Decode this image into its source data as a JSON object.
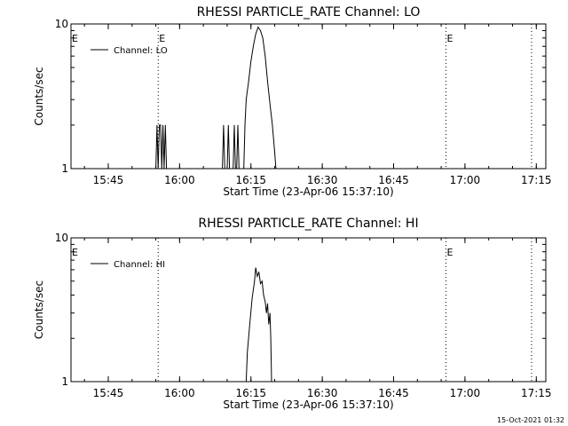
{
  "timestamp": "15-Oct-2021 01:32",
  "chart_data": [
    {
      "type": "line",
      "title": "RHESSI PARTICLE_RATE Channel: LO",
      "xlabel": "Start Time (23-Apr-06 15:37:10)",
      "ylabel": "Counts/sec",
      "y_scale": "log",
      "ylim": [
        1,
        10
      ],
      "xlim": [
        "15:37:10",
        "17:17:00"
      ],
      "xticks": [
        "15:45",
        "16:00",
        "16:15",
        "16:30",
        "16:45",
        "17:00",
        "17:15"
      ],
      "yticks": [
        "1",
        "10"
      ],
      "event_markers": [
        {
          "x": "15:55:30",
          "label": "E"
        },
        {
          "x": "16:56:00",
          "label": "E"
        },
        {
          "x": "17:14:00",
          "label": ""
        }
      ],
      "edge_label": "E",
      "legend": {
        "position": "top-left",
        "entries": [
          "Channel: LO"
        ]
      },
      "series": [
        {
          "name": "Channel: LO",
          "points": [
            [
              "15:55:00",
              1
            ],
            [
              "15:55:15",
              2
            ],
            [
              "15:55:30",
              1
            ],
            [
              "15:55:45",
              2
            ],
            [
              "15:56:00",
              2
            ],
            [
              "15:56:15",
              1
            ],
            [
              "15:56:30",
              2
            ],
            [
              "15:56:45",
              1
            ],
            [
              "15:57:00",
              2
            ],
            [
              "15:57:15",
              1
            ],
            [
              "16:09:00",
              1
            ],
            [
              "16:09:15",
              2
            ],
            [
              "16:09:30",
              1
            ],
            [
              "16:10:00",
              1
            ],
            [
              "16:10:15",
              2
            ],
            [
              "16:10:30",
              1
            ],
            [
              "16:11:15",
              1
            ],
            [
              "16:11:30",
              2
            ],
            [
              "16:11:45",
              1
            ],
            [
              "16:12:00",
              1
            ],
            [
              "16:12:15",
              2
            ],
            [
              "16:12:30",
              1
            ],
            [
              "16:13:30",
              1
            ],
            [
              "16:13:45",
              2
            ],
            [
              "16:14:00",
              3
            ],
            [
              "16:14:30",
              4
            ],
            [
              "16:15:00",
              5.5
            ],
            [
              "16:15:30",
              7
            ],
            [
              "16:16:00",
              8.5
            ],
            [
              "16:16:30",
              9.5
            ],
            [
              "16:17:00",
              9
            ],
            [
              "16:17:30",
              8
            ],
            [
              "16:18:00",
              6
            ],
            [
              "16:18:30",
              4
            ],
            [
              "16:19:00",
              2.8
            ],
            [
              "16:19:30",
              2
            ],
            [
              "16:20:00",
              1.3
            ],
            [
              "16:20:15",
              1
            ]
          ]
        }
      ]
    },
    {
      "type": "line",
      "title": "RHESSI PARTICLE_RATE Channel: HI",
      "xlabel": "Start Time (23-Apr-06 15:37:10)",
      "ylabel": "Counts/sec",
      "y_scale": "log",
      "ylim": [
        1,
        10
      ],
      "xlim": [
        "15:37:10",
        "17:17:00"
      ],
      "xticks": [
        "15:45",
        "16:00",
        "16:15",
        "16:30",
        "16:45",
        "17:00",
        "17:15"
      ],
      "yticks": [
        "1",
        "10"
      ],
      "event_markers": [
        {
          "x": "15:55:30",
          "label": ""
        },
        {
          "x": "16:56:00",
          "label": "E"
        },
        {
          "x": "17:14:00",
          "label": ""
        }
      ],
      "edge_label": "E",
      "legend": {
        "position": "top-left",
        "entries": [
          "Channel: HI"
        ]
      },
      "series": [
        {
          "name": "Channel: HI",
          "points": [
            [
              "16:14:00",
              1
            ],
            [
              "16:14:15",
              1.6
            ],
            [
              "16:14:45",
              2.5
            ],
            [
              "16:15:15",
              3.8
            ],
            [
              "16:15:45",
              5
            ],
            [
              "16:16:00",
              6.2
            ],
            [
              "16:16:20",
              5.4
            ],
            [
              "16:16:40",
              5.8
            ],
            [
              "16:17:00",
              4.8
            ],
            [
              "16:17:20",
              5
            ],
            [
              "16:17:40",
              4
            ],
            [
              "16:18:00",
              3.6
            ],
            [
              "16:18:15",
              3
            ],
            [
              "16:18:30",
              3.5
            ],
            [
              "16:18:45",
              2.5
            ],
            [
              "16:19:00",
              3
            ],
            [
              "16:19:10",
              2
            ],
            [
              "16:19:20",
              1
            ]
          ]
        }
      ]
    }
  ]
}
